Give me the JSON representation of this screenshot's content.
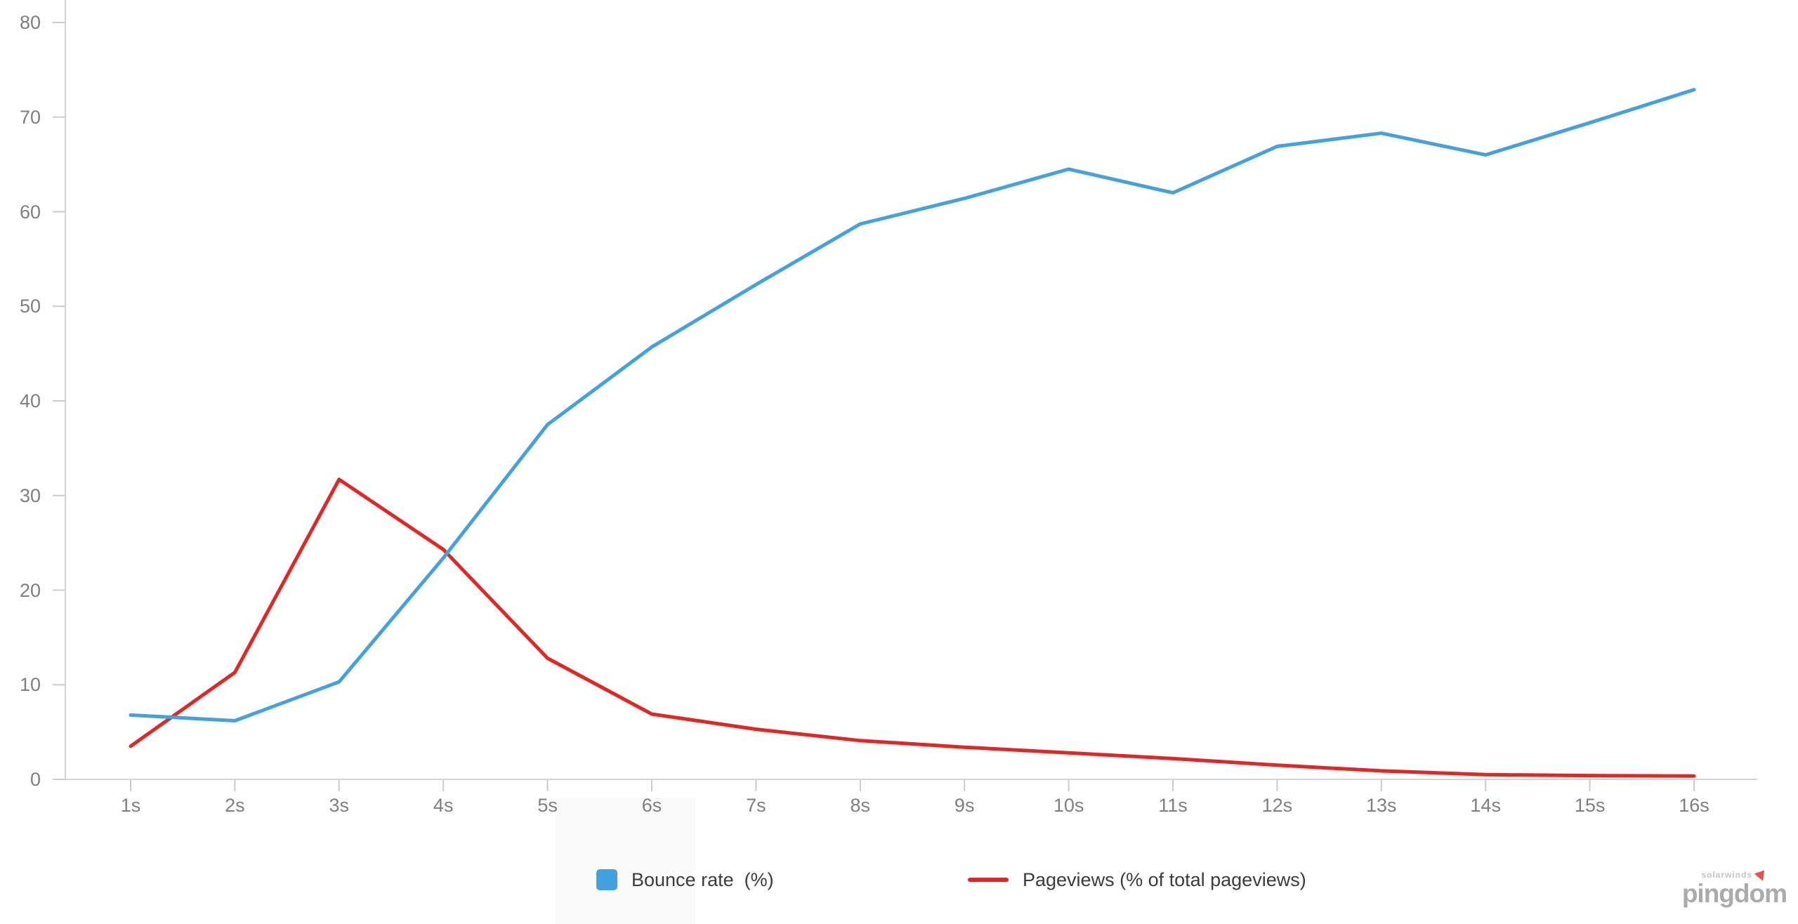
{
  "chart_data": {
    "type": "line",
    "categories": [
      "1s",
      "2s",
      "3s",
      "4s",
      "5s",
      "6s",
      "7s",
      "8s",
      "9s",
      "10s",
      "11s",
      "12s",
      "13s",
      "14s",
      "15s",
      "16s"
    ],
    "series": [
      {
        "name": "Bounce rate  (%)",
        "color": "#43a1e0",
        "legend_marker": "square",
        "values": [
          6.8,
          6.2,
          10.3,
          23.4,
          37.5,
          45.7,
          52.3,
          58.7,
          61.4,
          64.5,
          62.0,
          66.9,
          68.3,
          66.0,
          69.4,
          72.9
        ]
      },
      {
        "name": "Pageviews (% of total pageviews)",
        "color": "#e52521",
        "legend_marker": "line",
        "values": [
          3.5,
          11.3,
          31.7,
          24.3,
          12.8,
          6.9,
          5.3,
          4.1,
          3.4,
          2.8,
          2.2,
          1.5,
          0.9,
          0.5,
          0.4,
          0.35
        ]
      }
    ],
    "xlabel": "",
    "ylabel": "",
    "ylim": [
      0,
      80
    ],
    "y_ticks": [
      0,
      10,
      20,
      30,
      40,
      50,
      60,
      70,
      80
    ],
    "grid": false,
    "legend_position": "bottom"
  },
  "axes": {
    "axis_color": "#d4d4d4",
    "tick_color": "#cccccc",
    "label_color": "#7f7f7f"
  },
  "branding": {
    "small_text": "solarwinds",
    "logo_text": "pingdom",
    "arrow_color": "#ee5049"
  }
}
